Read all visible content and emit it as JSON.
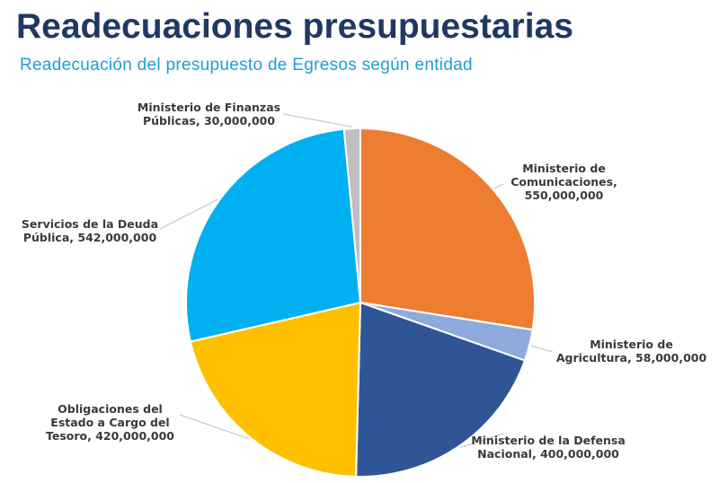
{
  "chart_data": {
    "type": "pie",
    "title": "Readecuaciones presupuestarias",
    "subtitle": "Readecuación del presupuesto de Egresos según entidad",
    "categories": [
      "Ministerio de Comunicaciones,",
      "Ministerio de Agricultura,",
      "Ministerio de la Defensa Nacional,",
      "Obligaciones del Estado a Cargo del Tesoro,",
      "Servicios de la Deuda Pública,",
      "Ministerio de Finanzas Públicas,"
    ],
    "values": [
      550000000,
      58000000,
      400000000,
      420000000,
      542000000,
      30000000
    ],
    "value_labels": [
      "550,000,000",
      "58,000,000",
      "400,000,000",
      "420,000,000",
      "542,000,000",
      "30,000,000"
    ],
    "colors": [
      "#ED7D31",
      "#8FAADC",
      "#2F5597",
      "#FFC000",
      "#00B0F0",
      "#BFBFBF"
    ]
  }
}
